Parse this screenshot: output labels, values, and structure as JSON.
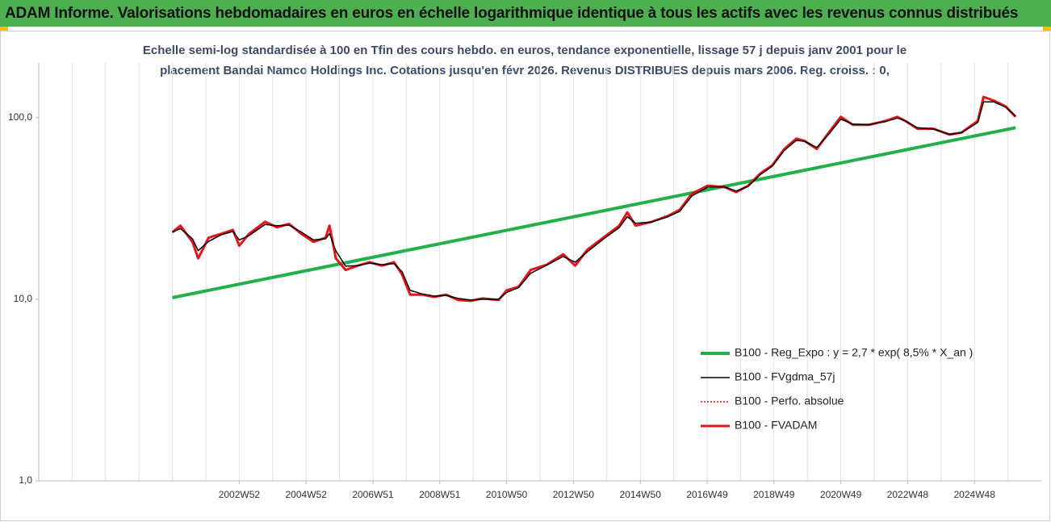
{
  "header": {
    "title": "ADAM Informe. Valorisations hebdomadaires en euros en échelle logarithmique identique à tous les actifs avec les revenus connus distribués"
  },
  "chart_data": {
    "type": "line",
    "subtitle": [
      "Echelle semi-log standardisée à 100 en Tfin des cours hebdo. en euros, tendance exponentielle, lissage 57 j depuis janv 2001 pour le",
      "placement Bandai Namco Holdings Inc. Cotations jusqu'en févr 2026. Revenus DISTRIBUES depuis mars 2006. Reg. croiss. : 0,"
    ],
    "log_y": true,
    "xlim": [
      1997,
      2027
    ],
    "xticks": [
      {
        "value": 2003,
        "label": "2002W52"
      },
      {
        "value": 2005,
        "label": "2004W52"
      },
      {
        "value": 2007,
        "label": "2006W51"
      },
      {
        "value": 2009,
        "label": "2008W51"
      },
      {
        "value": 2011,
        "label": "2010W50"
      },
      {
        "value": 2013,
        "label": "2012W50"
      },
      {
        "value": 2015,
        "label": "2014W50"
      },
      {
        "value": 2017,
        "label": "2016W49"
      },
      {
        "value": 2019,
        "label": "2018W49"
      },
      {
        "value": 2021,
        "label": "2020W49"
      },
      {
        "value": 2023,
        "label": "2022W48"
      },
      {
        "value": 2025,
        "label": "2024W48"
      }
    ],
    "xgrid": [
      1998,
      1999,
      2000,
      2001,
      2002,
      2003,
      2004,
      2005,
      2006,
      2007,
      2008,
      2009,
      2010,
      2011,
      2012,
      2013,
      2014,
      2015,
      2016,
      2017,
      2018,
      2019,
      2020,
      2021,
      2022,
      2023,
      2024,
      2025,
      2026
    ],
    "ylim": [
      1,
      200
    ],
    "yticks": [
      {
        "value": 1,
        "label": "1,0"
      },
      {
        "value": 10,
        "label": "10,0"
      },
      {
        "value": 100,
        "label": "100,0"
      }
    ],
    "x": [
      2001.0,
      2001.24,
      2001.6,
      2001.77,
      2002.08,
      2002.45,
      2002.81,
      2003.0,
      2003.29,
      2003.77,
      2004.13,
      2004.49,
      2004.86,
      2005.22,
      2005.58,
      2005.7,
      2005.89,
      2006.18,
      2006.54,
      2006.9,
      2007.27,
      2007.63,
      2007.87,
      2008.11,
      2008.47,
      2008.83,
      2009.19,
      2009.55,
      2009.92,
      2010.28,
      2010.76,
      2011.0,
      2011.36,
      2011.72,
      2012.2,
      2012.69,
      2013.05,
      2013.41,
      2013.89,
      2014.37,
      2014.61,
      2014.86,
      2015.34,
      2015.82,
      2016.18,
      2016.54,
      2017.02,
      2017.51,
      2017.87,
      2018.23,
      2018.59,
      2018.95,
      2019.31,
      2019.67,
      2019.92,
      2020.28,
      2020.64,
      2021.0,
      2021.36,
      2021.84,
      2022.33,
      2022.69,
      2022.93,
      2023.29,
      2023.77,
      2024.25,
      2024.61,
      2025.1,
      2025.27,
      2025.58,
      2025.94,
      2026.23
    ],
    "legend": "lower-right",
    "series": [
      {
        "name": "B100 - Reg_Expo : y = 2,7 * exp( 8,5% *  X_an )",
        "color": "#22b04b",
        "style": "solid",
        "width": 4,
        "x": [
          2001.0,
          2026.23
        ],
        "values": [
          10.2,
          88
        ]
      },
      {
        "name": "B100 - FVgdma_57j",
        "color": "#000000",
        "style": "solid",
        "width": 1.5,
        "values": [
          23.4,
          24.5,
          21.5,
          18.5,
          20.8,
          22.6,
          23.6,
          21.2,
          22.4,
          25.8,
          25.4,
          25.6,
          23.4,
          21.2,
          21.5,
          23,
          18.5,
          15.2,
          15.3,
          15.8,
          15.5,
          15.7,
          14.2,
          11.2,
          10.7,
          10.4,
          10.5,
          10.1,
          9.9,
          10.0,
          10.0,
          10.9,
          11.6,
          13.9,
          15.4,
          17.2,
          16,
          18.2,
          21.4,
          24.8,
          28.5,
          26.2,
          26.6,
          28.4,
          30.5,
          37,
          41.5,
          41.6,
          39.4,
          41.8,
          48.5,
          54,
          66,
          75,
          74,
          68.5,
          81,
          98,
          92,
          91.5,
          95,
          99.5,
          96,
          88,
          86.5,
          81,
          82.5,
          94,
          122,
          122,
          114,
          102
        ]
      },
      {
        "name": "B100 - Perfo. absolue",
        "color": "#e8141b",
        "style": "dotted",
        "width": 1.5,
        "values": [
          23.4,
          25.4,
          20.7,
          16.8,
          21.8,
          22.9,
          24.1,
          19.7,
          22.9,
          26.7,
          24.9,
          26,
          22.9,
          20.7,
          21.8,
          25.4,
          16.8,
          14.5,
          15.3,
          16,
          15.3,
          16,
          13.7,
          10.6,
          10.6,
          10.3,
          10.6,
          9.9,
          9.8,
          10.1,
          9.9,
          11.2,
          11.7,
          14.5,
          15.5,
          17.7,
          15.3,
          18.7,
          21.8,
          25.4,
          30.1,
          25.4,
          26.7,
          28.7,
          31.1,
          38.1,
          42.2,
          41.5,
          38.9,
          42.2,
          49.2,
          54.6,
          67.2,
          76.6,
          74.4,
          67.2,
          82.7,
          101,
          91.3,
          91.3,
          95.9,
          101,
          95.9,
          86.9,
          86.9,
          80.6,
          82.7,
          95.9,
          130,
          124,
          115,
          101
        ]
      },
      {
        "name": "B100 - FVADAM",
        "color": "#e8141b",
        "style": "solid",
        "width": 3,
        "values": [
          23.4,
          25.4,
          20.7,
          16.8,
          21.8,
          22.9,
          24.1,
          19.7,
          22.9,
          26.7,
          24.9,
          26,
          22.9,
          20.7,
          21.8,
          25.4,
          16.8,
          14.5,
          15.3,
          16,
          15.3,
          16,
          13.7,
          10.6,
          10.6,
          10.3,
          10.6,
          9.9,
          9.8,
          10.1,
          9.9,
          11.2,
          11.7,
          14.5,
          15.5,
          17.7,
          15.3,
          18.7,
          21.8,
          25.4,
          30.1,
          25.4,
          26.7,
          28.7,
          31.1,
          38.1,
          42.2,
          41.5,
          38.9,
          42.2,
          49.2,
          54.6,
          67.2,
          76.6,
          74.4,
          67.2,
          82.7,
          101,
          91.3,
          91.3,
          95.9,
          101,
          95.9,
          86.9,
          86.9,
          80.6,
          82.7,
          95.9,
          130,
          124,
          115,
          101
        ]
      }
    ]
  }
}
